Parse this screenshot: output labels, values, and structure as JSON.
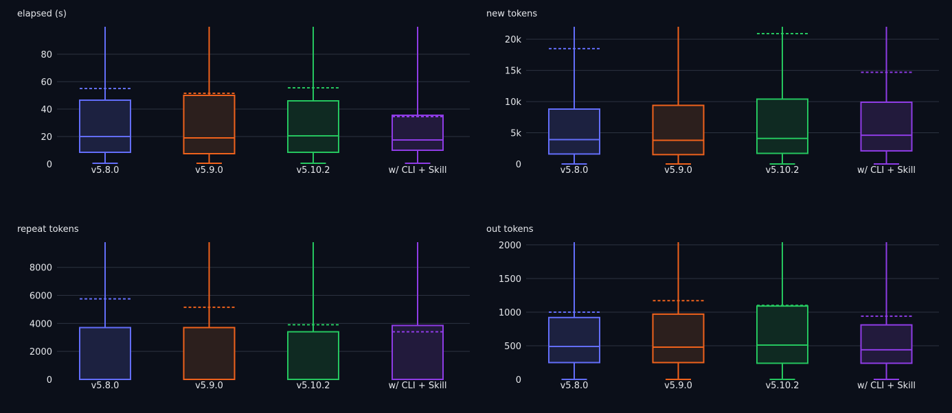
{
  "chart_data": [
    {
      "type": "box",
      "title": "elapsed (s)",
      "categories": [
        "v5.8.0",
        "v5.9.0",
        "v5.10.2",
        "w/ CLI + Skill"
      ],
      "ylim": [
        0,
        100
      ],
      "yticks": [
        0,
        20,
        40,
        60,
        80
      ],
      "ytick_labels": [
        "0",
        "20",
        "40",
        "60",
        "80"
      ],
      "series": [
        {
          "category": "v5.8.0",
          "min": 0.5,
          "q1": 8.5,
          "median": 20,
          "q3": 46.5,
          "max": 100,
          "mean": 55
        },
        {
          "category": "v5.9.0",
          "min": 0.5,
          "q1": 7.5,
          "median": 19,
          "q3": 50,
          "max": 100,
          "mean": 51.5
        },
        {
          "category": "v5.10.2",
          "min": 0.5,
          "q1": 8.5,
          "median": 20.5,
          "q3": 46,
          "max": 100,
          "mean": 55.5
        },
        {
          "category": "w/ CLI + Skill",
          "min": 0.5,
          "q1": 10,
          "median": 17.5,
          "q3": 35.5,
          "max": 100,
          "mean": 34.5
        }
      ],
      "grid": true
    },
    {
      "type": "box",
      "title": "new tokens",
      "categories": [
        "v5.8.0",
        "v5.9.0",
        "v5.10.2",
        "w/ CLI + Skill"
      ],
      "ylim": [
        0,
        22000
      ],
      "yticks": [
        0,
        5000,
        10000,
        15000,
        20000
      ],
      "ytick_labels": [
        "0",
        "5k",
        "10k",
        "15k",
        "20k"
      ],
      "series": [
        {
          "category": "v5.8.0",
          "min": 0,
          "q1": 1600,
          "median": 3900,
          "q3": 8800,
          "max": 22000,
          "mean": 18500
        },
        {
          "category": "v5.9.0",
          "min": 0,
          "q1": 1500,
          "median": 3800,
          "q3": 9400,
          "max": 22000,
          "mean": null
        },
        {
          "category": "v5.10.2",
          "min": 0,
          "q1": 1700,
          "median": 4100,
          "q3": 10400,
          "max": 22000,
          "mean": 20900
        },
        {
          "category": "w/ CLI + Skill",
          "min": 0,
          "q1": 2100,
          "median": 4600,
          "q3": 9900,
          "max": 22000,
          "mean": 14700
        }
      ],
      "grid": true
    },
    {
      "type": "box",
      "title": "repeat tokens",
      "categories": [
        "v5.8.0",
        "v5.9.0",
        "v5.10.2",
        "w/ CLI + Skill"
      ],
      "ylim": [
        0,
        9800
      ],
      "yticks": [
        0,
        2000,
        4000,
        6000,
        8000
      ],
      "ytick_labels": [
        "0",
        "2000",
        "4000",
        "6000",
        "8000"
      ],
      "series": [
        {
          "category": "v5.8.0",
          "min": 0,
          "q1": 0,
          "median": 0,
          "q3": 3700,
          "max": 9800,
          "mean": 5750
        },
        {
          "category": "v5.9.0",
          "min": 0,
          "q1": 0,
          "median": 0,
          "q3": 3700,
          "max": 9800,
          "mean": 5150
        },
        {
          "category": "v5.10.2",
          "min": 0,
          "q1": 0,
          "median": 0,
          "q3": 3400,
          "max": 9800,
          "mean": 3900
        },
        {
          "category": "w/ CLI + Skill",
          "min": 0,
          "q1": 0,
          "median": 0,
          "q3": 3850,
          "max": 9800,
          "mean": 3400
        }
      ],
      "grid": true
    },
    {
      "type": "box",
      "title": "out tokens",
      "categories": [
        "v5.8.0",
        "v5.9.0",
        "v5.10.2",
        "w/ CLI + Skill"
      ],
      "ylim": [
        0,
        2040
      ],
      "yticks": [
        0,
        500,
        1000,
        1500,
        2000
      ],
      "ytick_labels": [
        "0",
        "500",
        "1000",
        "1500",
        "2000"
      ],
      "series": [
        {
          "category": "v5.8.0",
          "min": 0,
          "q1": 250,
          "median": 490,
          "q3": 920,
          "max": 2040,
          "mean": 1000
        },
        {
          "category": "v5.9.0",
          "min": 0,
          "q1": 250,
          "median": 480,
          "q3": 970,
          "max": 2040,
          "mean": 1170
        },
        {
          "category": "v5.10.2",
          "min": 0,
          "q1": 240,
          "median": 510,
          "q3": 1090,
          "max": 2040,
          "mean": 1100
        },
        {
          "category": "w/ CLI + Skill",
          "min": 0,
          "q1": 240,
          "median": 440,
          "q3": 810,
          "max": 2040,
          "mean": 940
        }
      ],
      "grid": true
    }
  ],
  "colors": {
    "series": [
      "#636efa",
      "#f0621c",
      "#25c65f",
      "#8f3ce6"
    ],
    "fills": [
      "#1c2140",
      "#2c1f1d",
      "#0f2a22",
      "#221a3c"
    ],
    "background": "#0b0f19",
    "grid": "#2d3341"
  }
}
